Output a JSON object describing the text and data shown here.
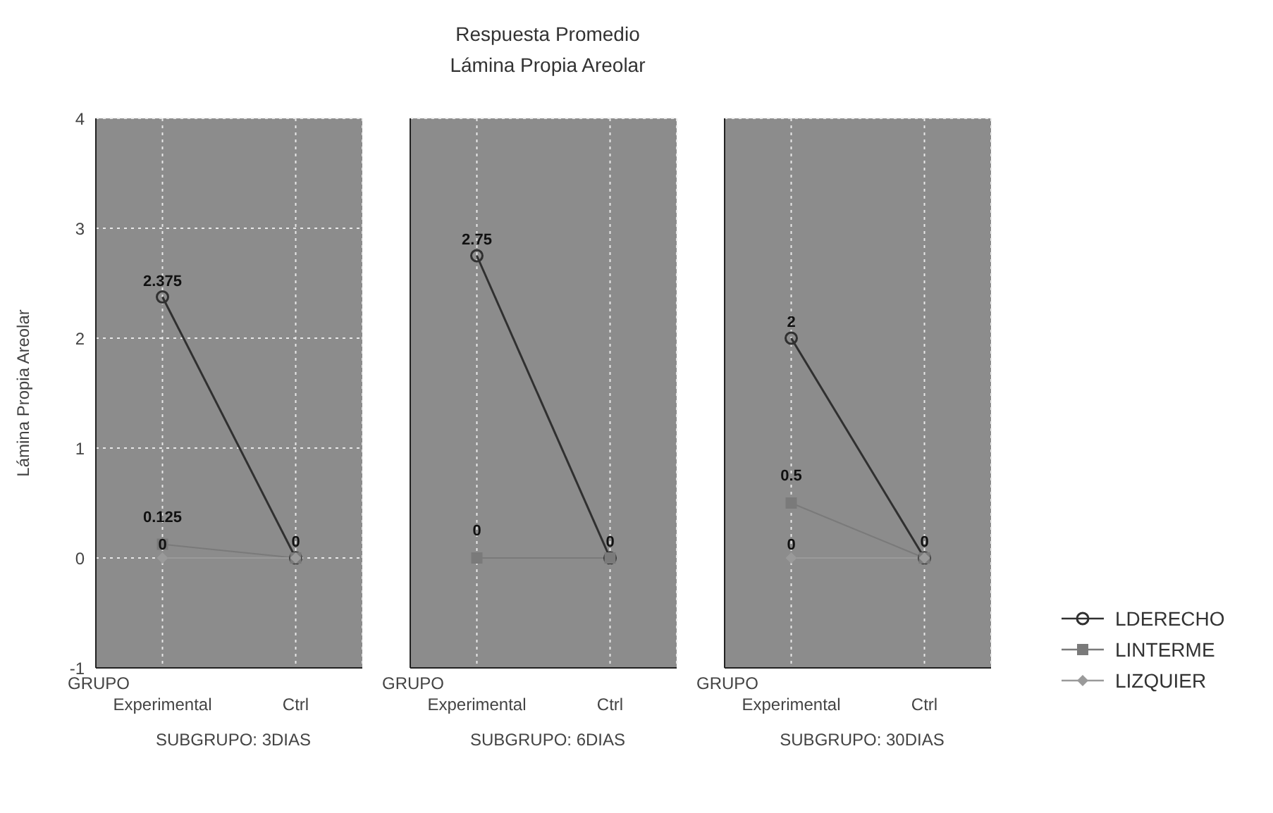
{
  "chart_data": [
    {
      "type": "line",
      "ylabel": "Lámina Propia Areolar",
      "xlabel": "GRUPO",
      "annotations": [
        "SUBGRUPO: 3DIAS"
      ],
      "categories": [
        "Experimental",
        "Ctrl"
      ],
      "ylim": [
        -1,
        4
      ],
      "yticks": [
        -1,
        0,
        1,
        2,
        3,
        4
      ],
      "grid": true,
      "series": [
        {
          "color": "#303030",
          "marker": "circle",
          "values": [
            2.375,
            0
          ],
          "value_labels": [
            "2.375",
            "0"
          ]
        },
        {
          "color": "#7a7a7a",
          "marker": "square",
          "values": [
            0.125,
            0
          ],
          "value_labels": [
            "0.125",
            null
          ]
        },
        {
          "color": "#9a9a9a",
          "marker": "diamond",
          "values": [
            0,
            0
          ],
          "value_labels": [
            "0",
            null
          ]
        }
      ]
    },
    {
      "type": "line",
      "title": "Respuesta Promedio",
      "subtitle": "Lámina Propia Areolar",
      "xlabel": "GRUPO",
      "annotations": [
        "SUBGRUPO: 6DIAS"
      ],
      "categories": [
        "Experimental",
        "Ctrl"
      ],
      "ylim": [
        -1,
        4
      ],
      "yticks": [
        -1,
        0,
        1,
        2,
        3,
        4
      ],
      "tick_labels": "x",
      "grid": true,
      "series": [
        {
          "color": "#303030",
          "marker": "circle",
          "values": [
            2.75,
            0
          ],
          "value_labels": [
            "2.75",
            "0"
          ]
        },
        {
          "color": "#7a7a7a",
          "marker": "square",
          "values": [
            0,
            0
          ],
          "value_labels": [
            "0",
            null
          ]
        },
        {
          "color": "#9a9a9a",
          "marker": "diamond",
          "values": [
            null,
            null
          ],
          "value_labels": [
            null,
            null
          ]
        }
      ]
    },
    {
      "type": "line",
      "xlabel": "GRUPO",
      "annotations": [
        "SUBGRUPO: 30DIAS"
      ],
      "categories": [
        "Experimental",
        "Ctrl"
      ],
      "ylim": [
        -1,
        4
      ],
      "yticks": [
        -1,
        0,
        1,
        2,
        3,
        4
      ],
      "tick_labels": "x",
      "grid": true,
      "legend": "bottom right",
      "series": [
        {
          "name": "LDERECHO",
          "color": "#303030",
          "marker": "circle",
          "values": [
            2,
            0
          ],
          "value_labels": [
            "2",
            "0"
          ]
        },
        {
          "name": "LINTERME",
          "color": "#7a7a7a",
          "marker": "square",
          "values": [
            0.5,
            0
          ],
          "value_labels": [
            "0.5",
            null
          ]
        },
        {
          "name": "LIZQUIER",
          "color": "#9a9a9a",
          "marker": "diamond",
          "values": [
            0,
            0
          ],
          "value_labels": [
            "0",
            null
          ]
        }
      ]
    }
  ]
}
